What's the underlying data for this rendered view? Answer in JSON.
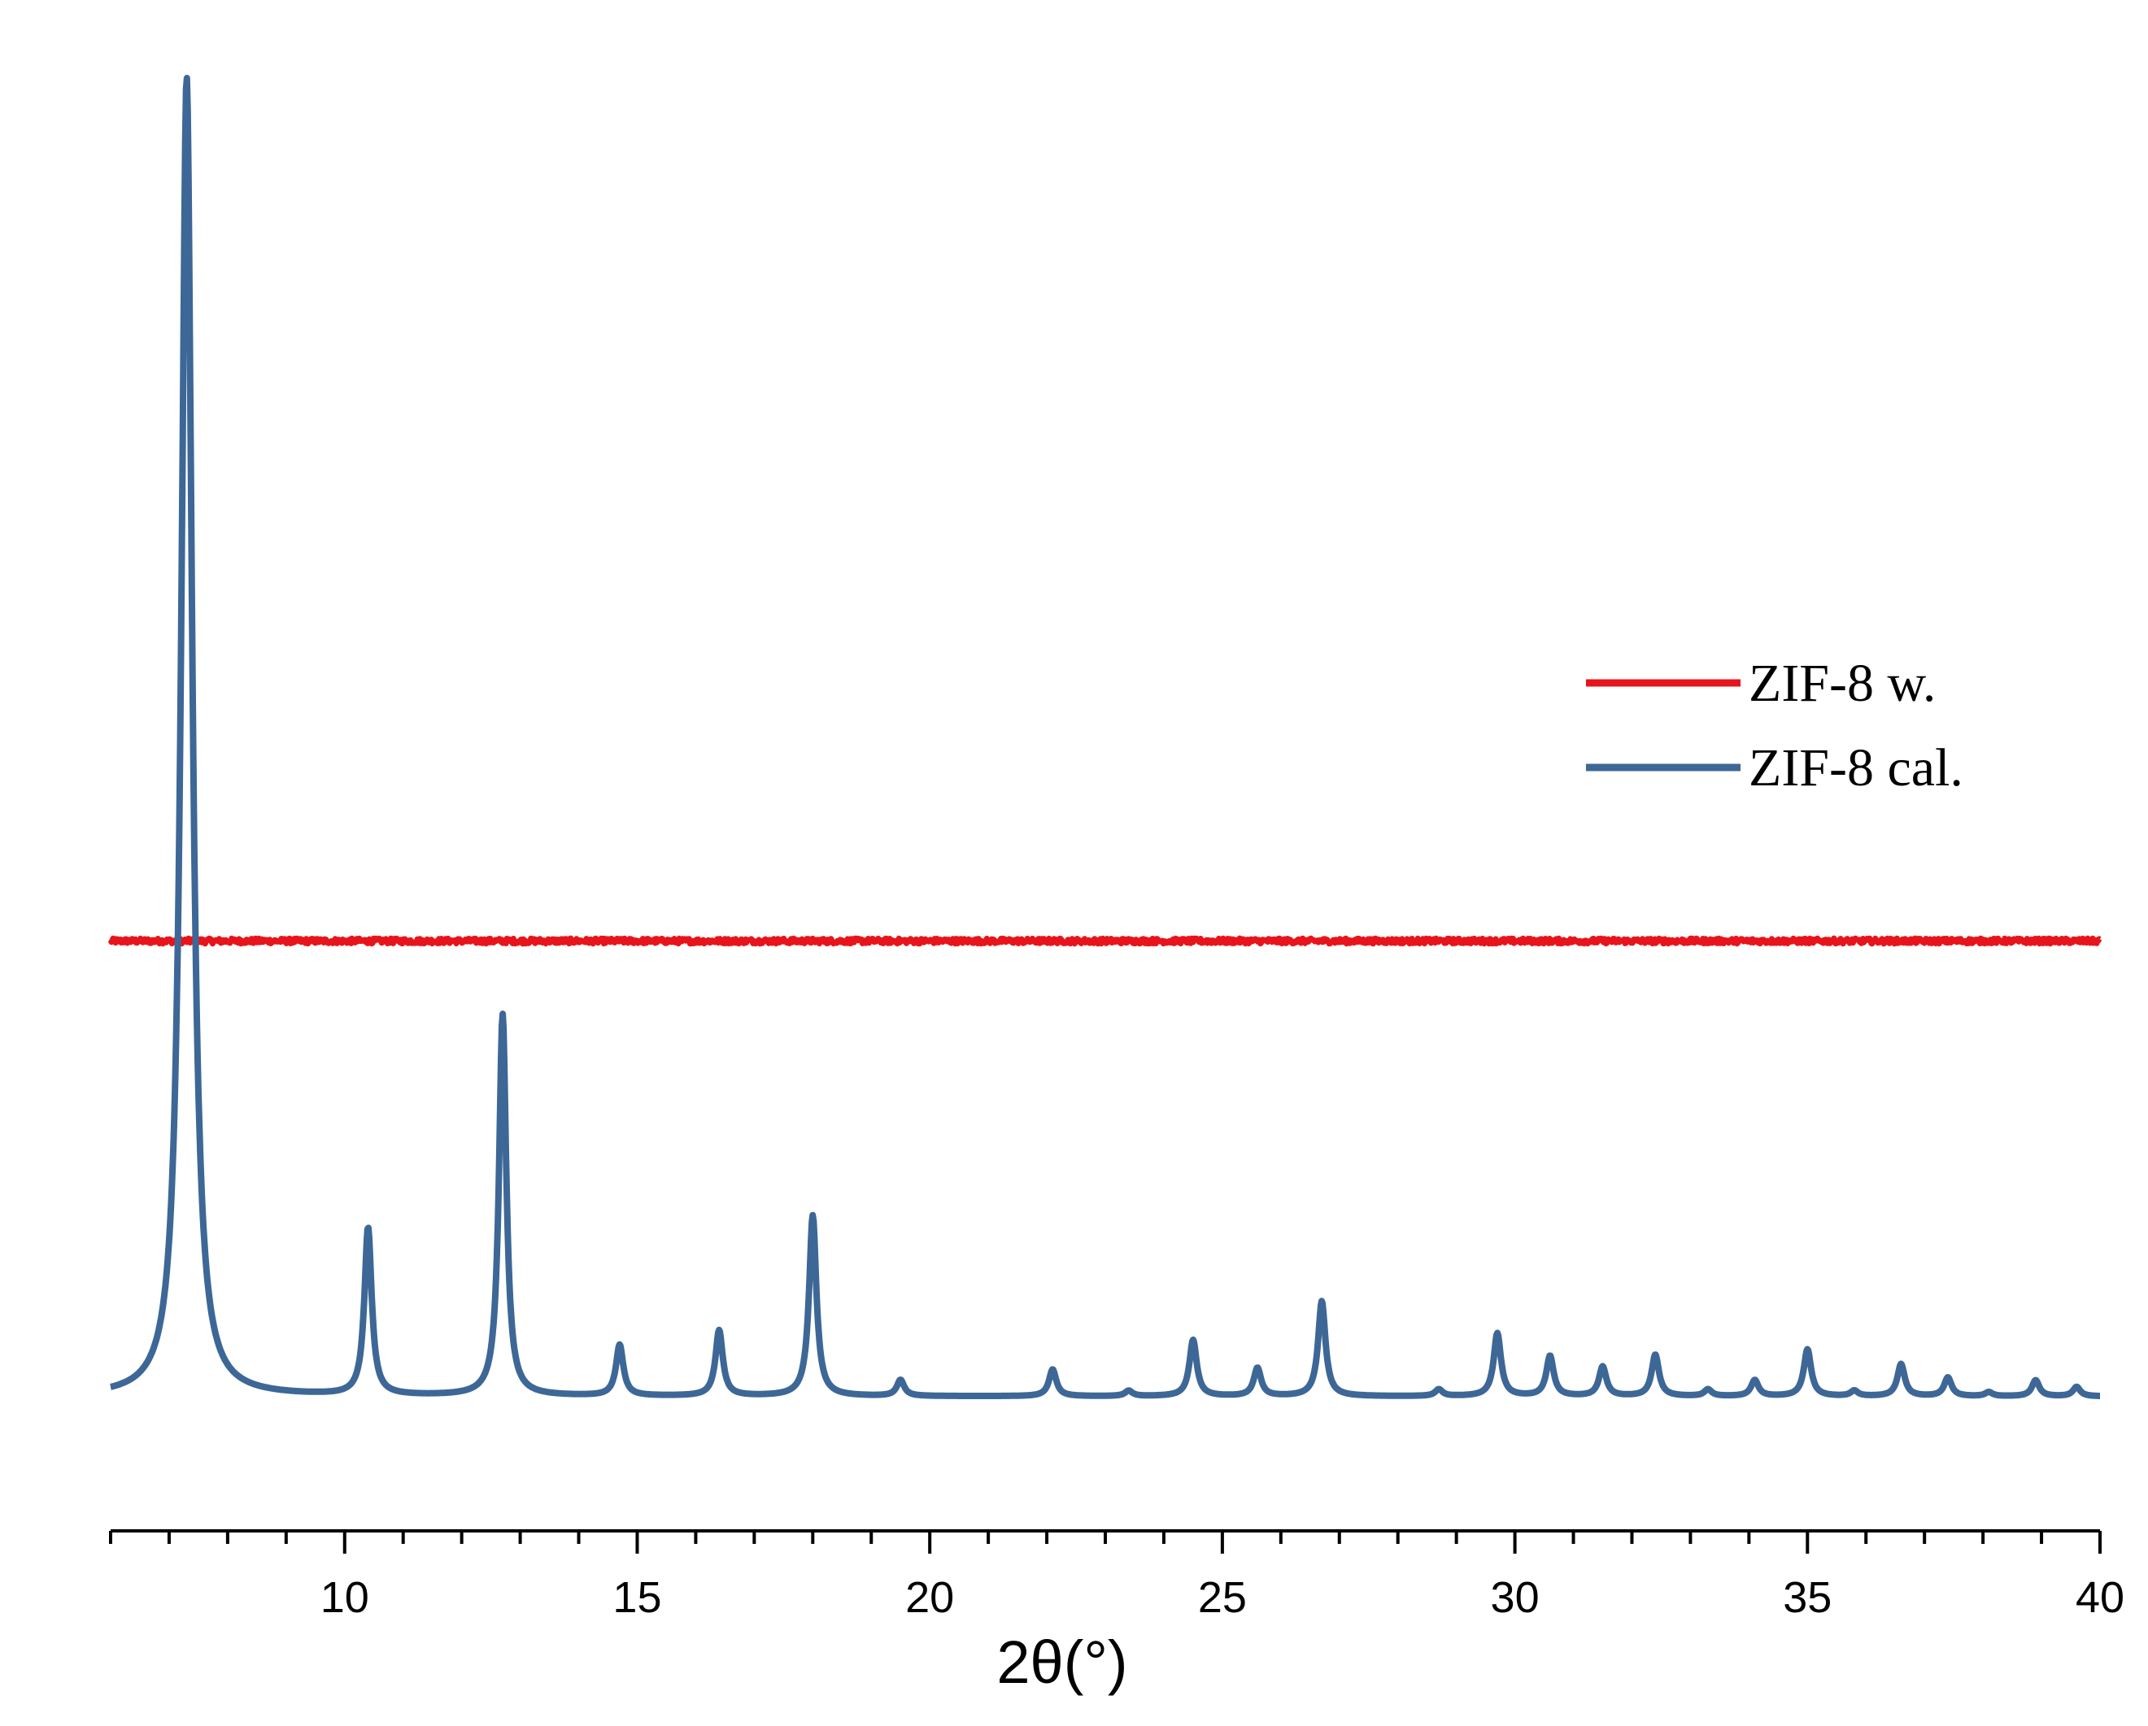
{
  "chart_data": {
    "type": "line",
    "xlabel": "2θ(°)",
    "ylabel": "",
    "xlim": [
      6,
      40
    ],
    "ylim": [
      -0.05,
      1.0
    ],
    "x_ticks_major": [
      10,
      15,
      20,
      25,
      30,
      35,
      40
    ],
    "x_tick_labels": [
      "10",
      "15",
      "20",
      "25",
      "30",
      "35",
      "40"
    ],
    "x_tick_minor_step": 1,
    "y_axis_visible": false,
    "grid": false,
    "legend_position": "right",
    "colors": {
      "ZIF-8 w.": "#e8141c",
      "ZIF-8 cal.": "#3d6796"
    },
    "series": [
      {
        "name": "ZIF-8 w.",
        "color": "#e8141c",
        "kind": "flat",
        "baseline": 0.34,
        "noise": 0.002
      },
      {
        "name": "ZIF-8 cal.",
        "color": "#3d6796",
        "kind": "peaks",
        "baseline": 0.0,
        "peaks": [
          {
            "x": 7.3,
            "y": 0.985
          },
          {
            "x": 10.4,
            "y": 0.125
          },
          {
            "x": 12.7,
            "y": 0.285
          },
          {
            "x": 14.7,
            "y": 0.038
          },
          {
            "x": 16.4,
            "y": 0.049
          },
          {
            "x": 18.0,
            "y": 0.135
          },
          {
            "x": 19.5,
            "y": 0.012
          },
          {
            "x": 22.1,
            "y": 0.02
          },
          {
            "x": 23.4,
            "y": 0.004
          },
          {
            "x": 24.5,
            "y": 0.042
          },
          {
            "x": 25.6,
            "y": 0.021
          },
          {
            "x": 26.7,
            "y": 0.071
          },
          {
            "x": 28.7,
            "y": 0.005
          },
          {
            "x": 29.7,
            "y": 0.047
          },
          {
            "x": 30.6,
            "y": 0.03
          },
          {
            "x": 31.5,
            "y": 0.022
          },
          {
            "x": 32.4,
            "y": 0.031
          },
          {
            "x": 33.3,
            "y": 0.005
          },
          {
            "x": 34.1,
            "y": 0.012
          },
          {
            "x": 35.0,
            "y": 0.035
          },
          {
            "x": 35.8,
            "y": 0.004
          },
          {
            "x": 36.6,
            "y": 0.024
          },
          {
            "x": 37.4,
            "y": 0.014
          },
          {
            "x": 38.1,
            "y": 0.003
          },
          {
            "x": 38.9,
            "y": 0.012
          },
          {
            "x": 39.6,
            "y": 0.007
          }
        ]
      }
    ]
  }
}
